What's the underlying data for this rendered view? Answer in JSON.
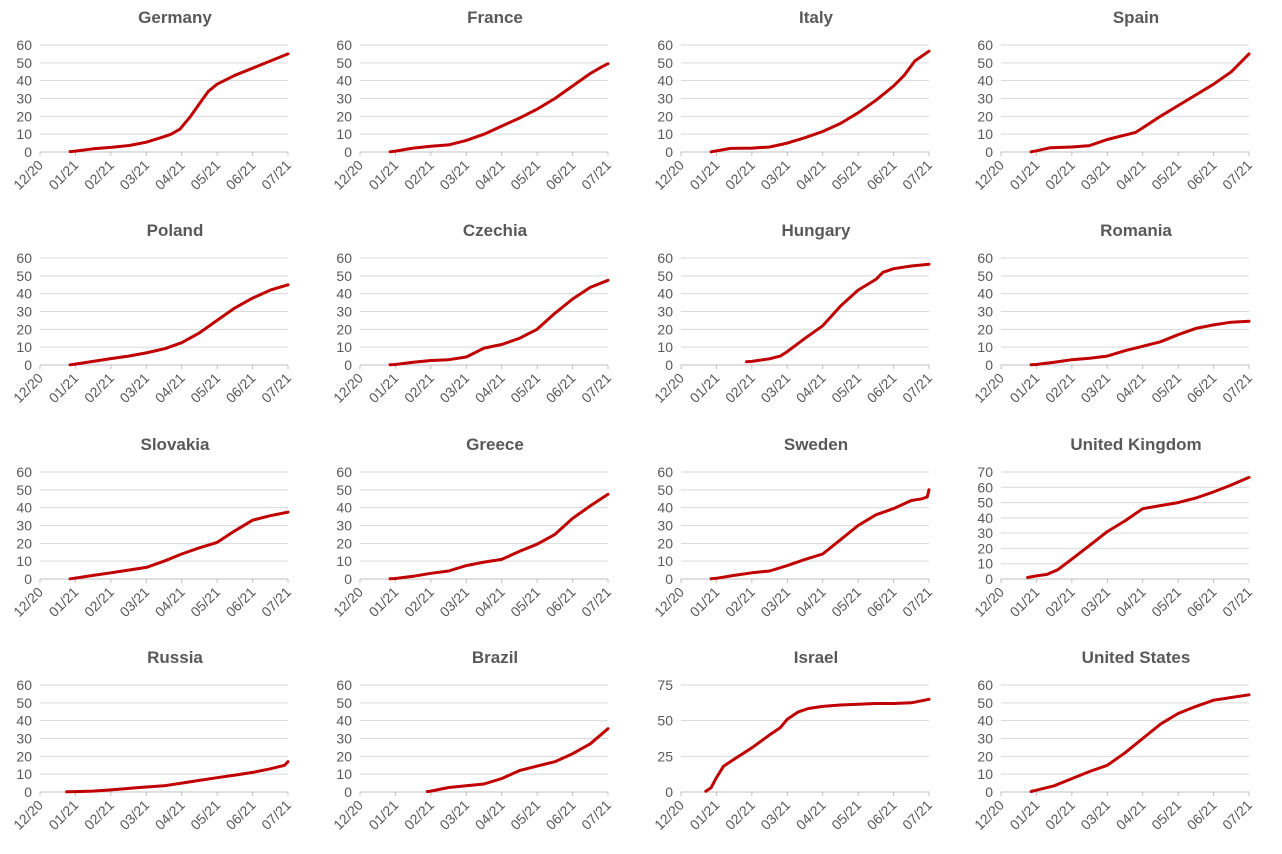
{
  "theme": {
    "line_color": "#C00000",
    "grid_color": "#D9D9D9",
    "text_color": "#595959"
  },
  "chart_data": [
    {
      "type": "line",
      "title": "Germany",
      "ylim": [
        0,
        60
      ],
      "yticks": [
        0,
        10,
        20,
        30,
        40,
        50,
        60
      ],
      "xticks": [
        "12/20",
        "01/21",
        "02/21",
        "03/21",
        "04/21",
        "05/21",
        "06/21",
        "07/21"
      ],
      "series": [
        {
          "x": [
            0.85,
            1,
            1.5,
            2,
            2.5,
            3,
            3.5,
            3.7,
            3.95,
            4.25,
            4.5,
            4.75,
            5,
            5.5,
            6,
            6.5,
            7
          ],
          "y": [
            0.2,
            0.5,
            1.8,
            2.6,
            3.6,
            5.5,
            8.6,
            10,
            12.8,
            20,
            27,
            34,
            38,
            43,
            47,
            51,
            55
          ]
        }
      ]
    },
    {
      "type": "line",
      "title": "France",
      "ylim": [
        0,
        60
      ],
      "yticks": [
        0,
        10,
        20,
        30,
        40,
        50,
        60
      ],
      "xticks": [
        "12/20",
        "01/21",
        "02/21",
        "03/21",
        "04/21",
        "05/21",
        "06/21",
        "07/21"
      ],
      "series": [
        {
          "x": [
            0.85,
            1,
            1.5,
            2,
            2.5,
            3,
            3.5,
            4,
            4.5,
            5,
            5.5,
            6,
            6.5,
            6.8,
            7
          ],
          "y": [
            0.1,
            0.5,
            2.2,
            3.2,
            4,
            6.5,
            10,
            14.5,
            19,
            24,
            30,
            37,
            44,
            47.5,
            49.5
          ]
        }
      ]
    },
    {
      "type": "line",
      "title": "Italy",
      "ylim": [
        0,
        60
      ],
      "yticks": [
        0,
        10,
        20,
        30,
        40,
        50,
        60
      ],
      "xticks": [
        "12/20",
        "01/21",
        "02/21",
        "03/21",
        "04/21",
        "05/21",
        "06/21",
        "07/21"
      ],
      "series": [
        {
          "x": [
            0.85,
            1,
            1.4,
            2,
            2.5,
            3,
            3.5,
            4,
            4.5,
            5,
            5.5,
            6,
            6.3,
            6.6,
            7
          ],
          "y": [
            0.1,
            0.6,
            2,
            2.2,
            2.8,
            5,
            8,
            11.5,
            16,
            22,
            29,
            37,
            43,
            51,
            56.5
          ]
        }
      ]
    },
    {
      "type": "line",
      "title": "Spain",
      "ylim": [
        0,
        60
      ],
      "yticks": [
        0,
        10,
        20,
        30,
        40,
        50,
        60
      ],
      "xticks": [
        "12/20",
        "01/21",
        "02/21",
        "03/21",
        "04/21",
        "05/21",
        "06/21",
        "07/21"
      ],
      "series": [
        {
          "x": [
            0.85,
            1,
            1.4,
            2,
            2.5,
            3,
            3.5,
            3.8,
            4,
            4.5,
            5,
            5.5,
            6,
            6.5,
            7
          ],
          "y": [
            0.1,
            0.7,
            2.4,
            2.8,
            3.6,
            7,
            9.5,
            11,
            13.5,
            20,
            26,
            32,
            38,
            45,
            55
          ]
        }
      ]
    },
    {
      "type": "line",
      "title": "Poland",
      "ylim": [
        0,
        60
      ],
      "yticks": [
        0,
        10,
        20,
        30,
        40,
        50,
        60
      ],
      "xticks": [
        "12/20",
        "01/21",
        "02/21",
        "03/21",
        "04/21",
        "05/21",
        "06/21",
        "07/21"
      ],
      "series": [
        {
          "x": [
            0.85,
            1,
            1.5,
            2,
            2.5,
            3,
            3.5,
            4,
            4.5,
            5,
            5.5,
            6,
            6.5,
            7
          ],
          "y": [
            0.1,
            0.5,
            2,
            3.6,
            5,
            6.8,
            9,
            12.5,
            18,
            25,
            32,
            37.5,
            42,
            45
          ]
        }
      ]
    },
    {
      "type": "line",
      "title": "Czechia",
      "ylim": [
        0,
        60
      ],
      "yticks": [
        0,
        10,
        20,
        30,
        40,
        50,
        60
      ],
      "xticks": [
        "12/20",
        "01/21",
        "02/21",
        "03/21",
        "04/21",
        "05/21",
        "06/21",
        "07/21"
      ],
      "series": [
        {
          "x": [
            0.85,
            1,
            1.5,
            2,
            2.5,
            3,
            3.5,
            4,
            4.5,
            5,
            5.5,
            6,
            6.5,
            7
          ],
          "y": [
            0.1,
            0.3,
            1.5,
            2.5,
            3,
            4.5,
            9.5,
            11.5,
            15,
            20,
            29,
            37,
            43.5,
            47.5
          ]
        }
      ]
    },
    {
      "type": "line",
      "title": "Hungary",
      "ylim": [
        0,
        60
      ],
      "yticks": [
        0,
        10,
        20,
        30,
        40,
        50,
        60
      ],
      "xticks": [
        "12/20",
        "01/21",
        "02/21",
        "03/21",
        "04/21",
        "05/21",
        "06/21",
        "07/21"
      ],
      "series": [
        {
          "x": [
            1.85,
            2,
            2.5,
            2.8,
            3,
            3.5,
            4,
            4.5,
            5,
            5.5,
            5.7,
            6,
            6.5,
            7
          ],
          "y": [
            1.8,
            2,
            3.5,
            5,
            7.5,
            15,
            22,
            33,
            42,
            48,
            52,
            54,
            55.5,
            56.5
          ]
        }
      ]
    },
    {
      "type": "line",
      "title": "Romania",
      "ylim": [
        0,
        60
      ],
      "yticks": [
        0,
        10,
        20,
        30,
        40,
        50,
        60
      ],
      "xticks": [
        "12/20",
        "01/21",
        "02/21",
        "03/21",
        "04/21",
        "05/21",
        "06/21",
        "07/21"
      ],
      "series": [
        {
          "x": [
            0.85,
            1,
            1.5,
            2,
            2.5,
            3,
            3.5,
            4,
            4.5,
            5,
            5.5,
            6,
            6.5,
            7
          ],
          "y": [
            0.1,
            0.3,
            1.5,
            3,
            3.8,
            5,
            8,
            10.5,
            13,
            17,
            20.5,
            22.5,
            24,
            24.5
          ]
        }
      ]
    },
    {
      "type": "line",
      "title": "Slovakia",
      "ylim": [
        0,
        60
      ],
      "yticks": [
        0,
        10,
        20,
        30,
        40,
        50,
        60
      ],
      "xticks": [
        "12/20",
        "01/21",
        "02/21",
        "03/21",
        "04/21",
        "05/21",
        "06/21",
        "07/21"
      ],
      "series": [
        {
          "x": [
            0.85,
            1,
            1.5,
            2,
            2.5,
            3,
            3.5,
            4,
            4.5,
            5,
            5.5,
            6,
            6.5,
            7
          ],
          "y": [
            0.1,
            0.5,
            2,
            3.5,
            5,
            6.5,
            10,
            14,
            17.5,
            20.5,
            27,
            33,
            35.5,
            37.5
          ]
        }
      ]
    },
    {
      "type": "line",
      "title": "Greece",
      "ylim": [
        0,
        60
      ],
      "yticks": [
        0,
        10,
        20,
        30,
        40,
        50,
        60
      ],
      "xticks": [
        "12/20",
        "01/21",
        "02/21",
        "03/21",
        "04/21",
        "05/21",
        "06/21",
        "07/21"
      ],
      "series": [
        {
          "x": [
            0.85,
            1,
            1.5,
            2,
            2.5,
            3,
            3.5,
            4,
            4.5,
            5,
            5.5,
            6,
            6.5,
            7
          ],
          "y": [
            0.1,
            0.3,
            1.5,
            3.2,
            4.5,
            7.5,
            9.5,
            11,
            15.5,
            19.5,
            25,
            34,
            41,
            47.5
          ]
        }
      ]
    },
    {
      "type": "line",
      "title": "Sweden",
      "ylim": [
        0,
        60
      ],
      "yticks": [
        0,
        10,
        20,
        30,
        40,
        50,
        60
      ],
      "xticks": [
        "12/20",
        "01/21",
        "02/21",
        "03/21",
        "04/21",
        "05/21",
        "06/21",
        "07/21"
      ],
      "series": [
        {
          "x": [
            0.85,
            1,
            1.5,
            2,
            2.5,
            3,
            3.5,
            4,
            4.5,
            5,
            5.5,
            6,
            6.5,
            6.8,
            6.95,
            7
          ],
          "y": [
            0.1,
            0.4,
            2,
            3.5,
            4.5,
            7.5,
            11,
            14,
            22,
            30,
            36,
            39.5,
            44,
            45,
            46,
            50
          ]
        }
      ]
    },
    {
      "type": "line",
      "title": "United Kingdom",
      "ylim": [
        0,
        70
      ],
      "yticks": [
        0,
        10,
        20,
        30,
        40,
        50,
        60,
        70
      ],
      "xticks": [
        "12/20",
        "01/21",
        "02/21",
        "03/21",
        "04/21",
        "05/21",
        "06/21",
        "07/21"
      ],
      "series": [
        {
          "x": [
            0.75,
            1,
            1.3,
            1.6,
            2,
            2.5,
            3,
            3.5,
            4,
            4.5,
            5,
            5.5,
            6,
            6.5,
            7
          ],
          "y": [
            1,
            2,
            3,
            6,
            13,
            22,
            31,
            38,
            46,
            48,
            50,
            53,
            57,
            61.5,
            66.5
          ]
        }
      ]
    },
    {
      "type": "line",
      "title": "Russia",
      "ylim": [
        0,
        60
      ],
      "yticks": [
        0,
        10,
        20,
        30,
        40,
        50,
        60
      ],
      "xticks": [
        "12/20",
        "01/21",
        "02/21",
        "03/21",
        "04/21",
        "05/21",
        "06/21",
        "07/21"
      ],
      "series": [
        {
          "x": [
            0.75,
            1,
            1.5,
            2,
            2.5,
            3,
            3.5,
            4,
            4.5,
            5,
            5.5,
            6,
            6.5,
            6.9,
            7
          ],
          "y": [
            0.1,
            0.2,
            0.5,
            1.2,
            2,
            2.8,
            3.5,
            5,
            6.5,
            8,
            9.5,
            11,
            13,
            15,
            17
          ]
        }
      ]
    },
    {
      "type": "line",
      "title": "Brazil",
      "ylim": [
        0,
        60
      ],
      "yticks": [
        0,
        10,
        20,
        30,
        40,
        50,
        60
      ],
      "xticks": [
        "12/20",
        "01/21",
        "02/21",
        "03/21",
        "04/21",
        "05/21",
        "06/21",
        "07/21"
      ],
      "series": [
        {
          "x": [
            1.9,
            2,
            2.5,
            3,
            3.5,
            4,
            4.5,
            5,
            5.5,
            6,
            6.5,
            7
          ],
          "y": [
            0.2,
            0.5,
            2.5,
            3.5,
            4.5,
            7.5,
            12,
            14.5,
            17,
            21.5,
            27,
            35.5
          ]
        }
      ]
    },
    {
      "type": "line",
      "title": "Israel",
      "ylim": [
        0,
        75
      ],
      "yticks": [
        0,
        25,
        50,
        75
      ],
      "xticks": [
        "12/20",
        "01/21",
        "02/21",
        "03/21",
        "04/21",
        "05/21",
        "06/21",
        "07/21"
      ],
      "series": [
        {
          "x": [
            0.7,
            0.85,
            1,
            1.2,
            1.5,
            2,
            2.5,
            2.8,
            3,
            3.3,
            3.6,
            4,
            4.5,
            5,
            5.5,
            6,
            6.5,
            7
          ],
          "y": [
            0.5,
            3,
            10,
            18,
            23,
            31,
            40,
            45,
            51,
            56,
            58.5,
            60,
            61,
            61.5,
            62,
            62,
            62.5,
            65
          ]
        }
      ]
    },
    {
      "type": "line",
      "title": "United States",
      "ylim": [
        0,
        60
      ],
      "yticks": [
        0,
        10,
        20,
        30,
        40,
        50,
        60
      ],
      "xticks": [
        "12/20",
        "01/21",
        "02/21",
        "03/21",
        "04/21",
        "05/21",
        "06/21",
        "07/21"
      ],
      "series": [
        {
          "x": [
            0.85,
            1,
            1.5,
            2,
            2.5,
            3,
            3.5,
            4,
            4.5,
            5,
            5.5,
            6,
            6.5,
            7
          ],
          "y": [
            0.3,
            1,
            3.5,
            7.5,
            11.5,
            15,
            22,
            30,
            38,
            44,
            48,
            51.5,
            53,
            54.5
          ]
        }
      ]
    }
  ]
}
